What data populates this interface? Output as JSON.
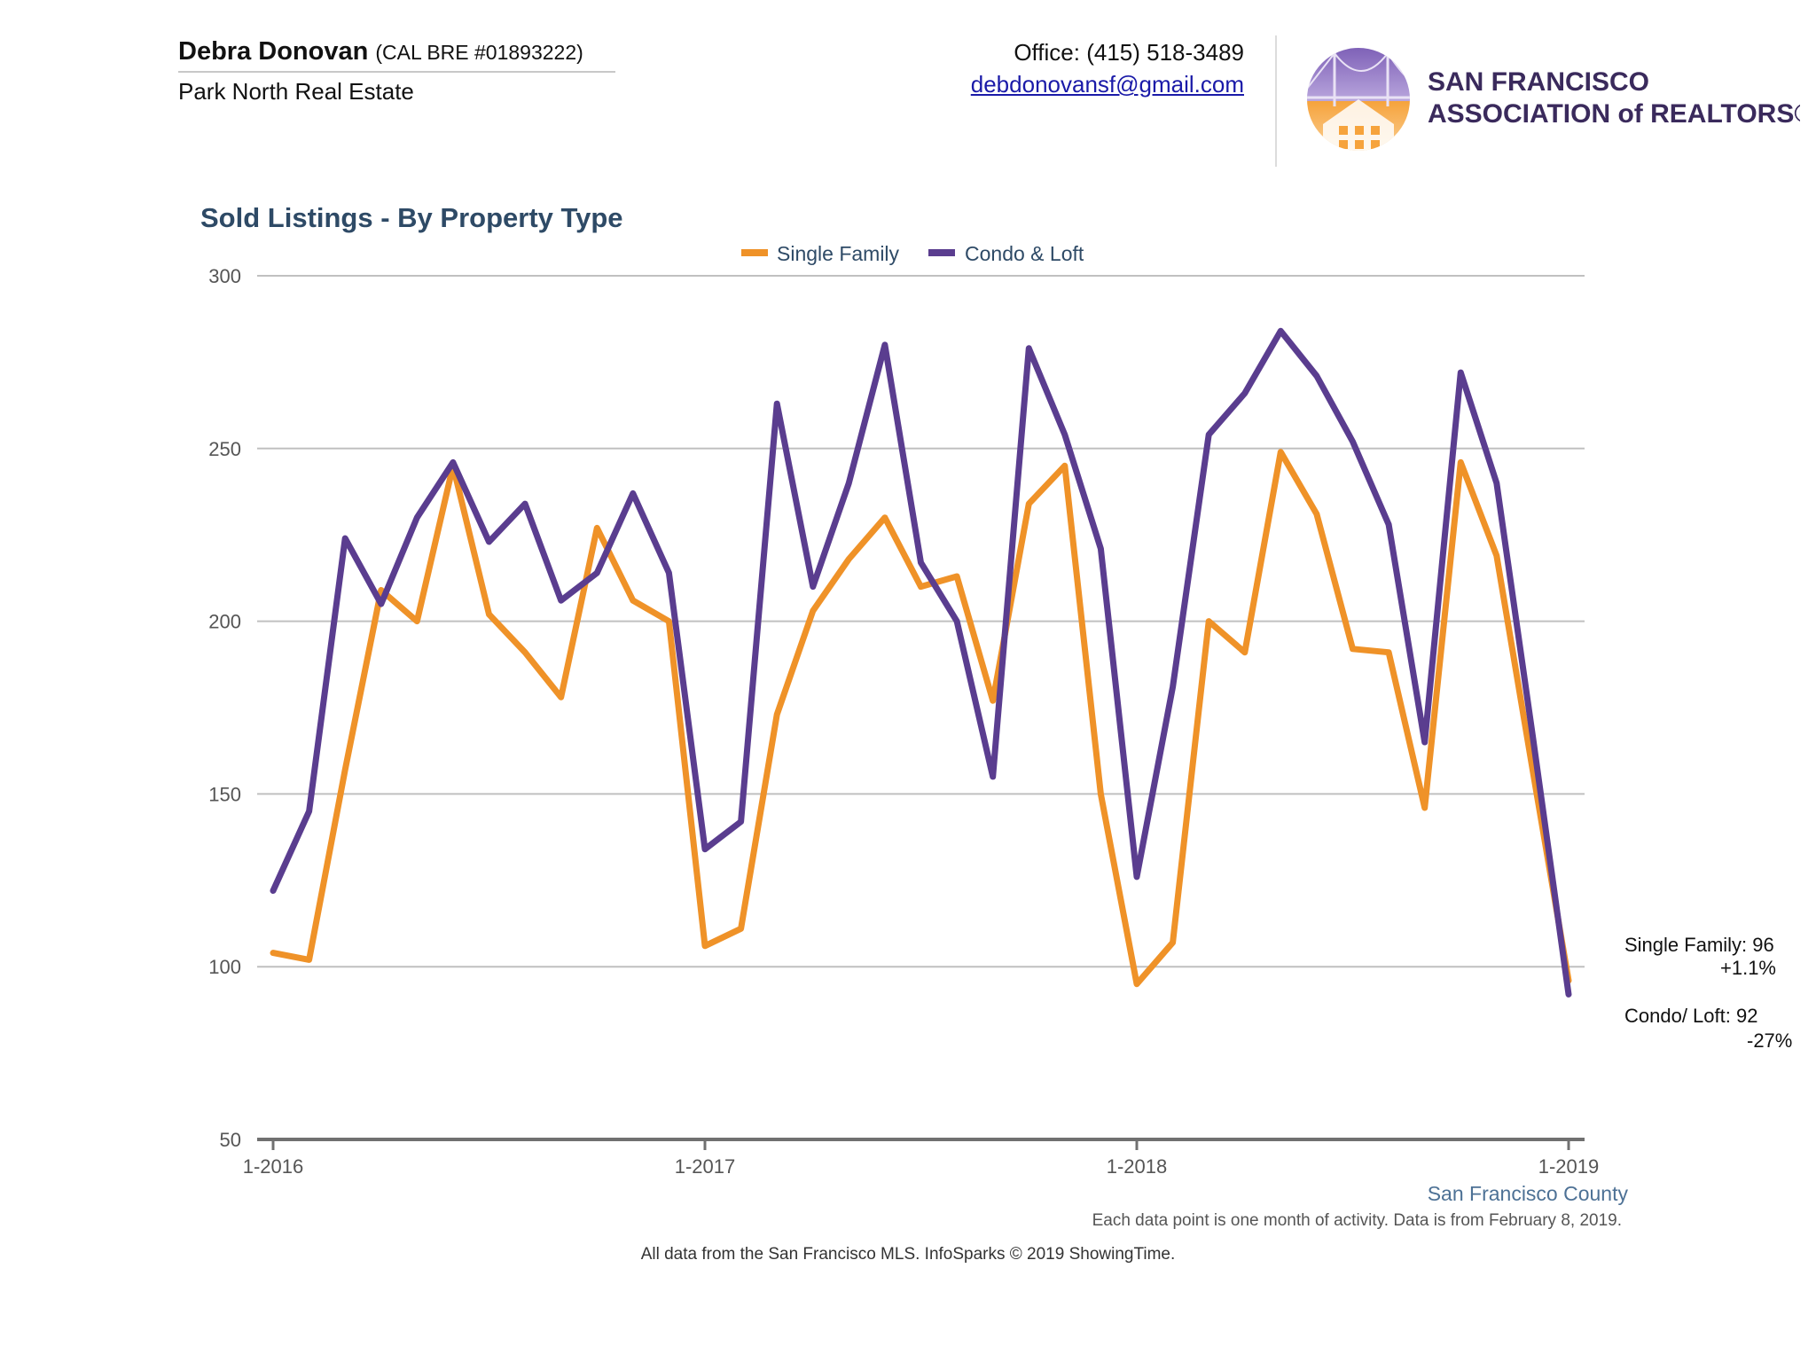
{
  "header": {
    "agent_name": "Debra Donovan",
    "agent_license": "(CAL BRE #01893222)",
    "brokerage": "Park North Real Estate",
    "office_phone": "Office: (415) 518-3489",
    "email": "debdonovansf@gmail.com",
    "logo_line1": "SAN FRANCISCO",
    "logo_line2": "ASSOCIATION of REALTORS®"
  },
  "colors": {
    "single_family": "#ef9228",
    "condo_loft": "#5a3d8f",
    "grid": "#c0c0c0",
    "axis": "#707070"
  },
  "chart_data": {
    "type": "line",
    "title": "Sold Listings - By Property Type",
    "ylim": [
      50,
      300
    ],
    "yticks": [
      50,
      100,
      150,
      200,
      250,
      300
    ],
    "xtick_labels": [
      "1-2016",
      "1-2017",
      "1-2018",
      "1-2019"
    ],
    "x_start": "1-2016",
    "x_end": "1-2019",
    "legend_position": "top-center",
    "grid": true,
    "series": [
      {
        "name": "Single Family",
        "values": [
          104,
          102,
          157,
          209,
          200,
          245,
          202,
          191,
          178,
          227,
          206,
          200,
          106,
          111,
          173,
          203,
          218,
          230,
          210,
          213,
          177,
          234,
          245,
          150,
          95,
          107,
          200,
          191,
          249,
          231,
          192,
          191,
          146,
          246,
          219,
          157,
          96
        ]
      },
      {
        "name": "Condo & Loft",
        "values": [
          122,
          145,
          224,
          205,
          230,
          246,
          223,
          234,
          206,
          214,
          237,
          214,
          134,
          142,
          263,
          210,
          240,
          280,
          217,
          200,
          155,
          279,
          254,
          221,
          126,
          181,
          254,
          266,
          284,
          271,
          252,
          228,
          165,
          272,
          240,
          167,
          92
        ]
      }
    ],
    "annotations": {
      "single_family_label": "Single Family: 96",
      "single_family_change": "+1.1%",
      "condo_label": "Condo/ Loft: 92",
      "condo_change": "-27%"
    }
  },
  "footer": {
    "county": "San Francisco County",
    "note": "Each data point is one month of activity. Data is from February 8, 2019.",
    "source": "All data from the San Francisco MLS. InfoSparks © 2019 ShowingTime."
  }
}
